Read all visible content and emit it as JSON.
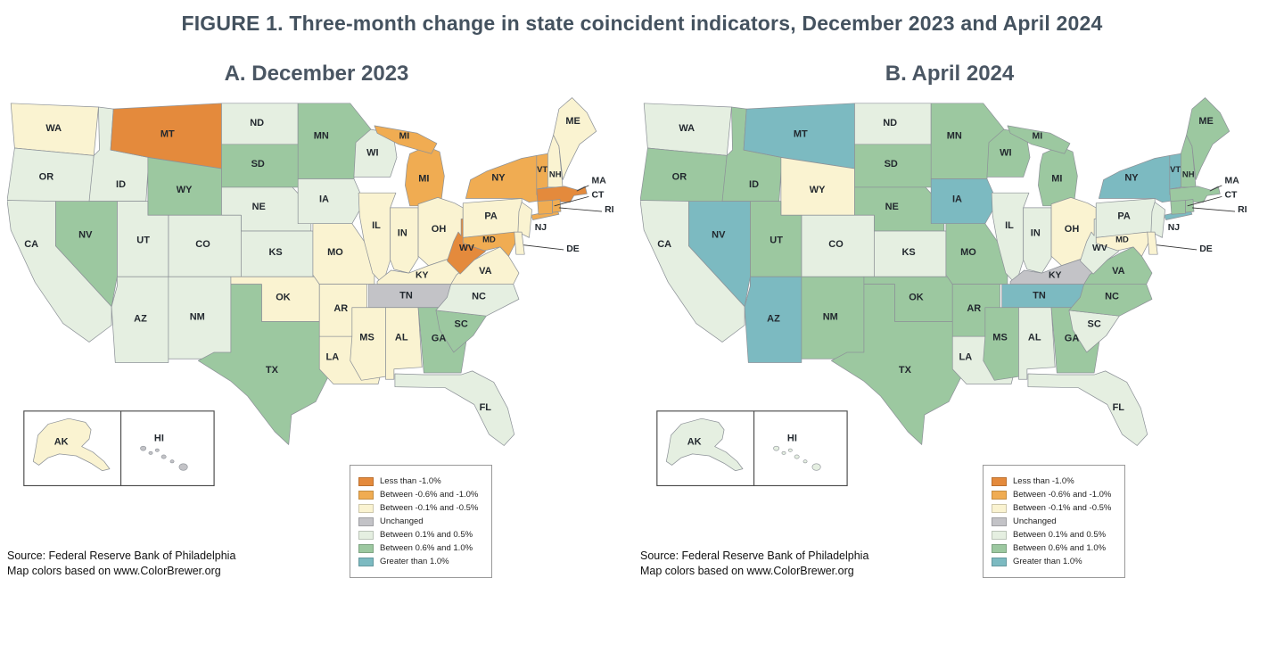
{
  "figure": {
    "title": "FIGURE 1. Three-month change in state coincident indicators, December 2023 and April 2024"
  },
  "legend": {
    "items": [
      {
        "key": "lt_m10",
        "label": "Less than -1.0%",
        "color": "#E48A3C"
      },
      {
        "key": "m06_m10",
        "label": "Between -0.6% and -1.0%",
        "color": "#F0AC52"
      },
      {
        "key": "m01_m05",
        "label": "Between -0.1% and -0.5%",
        "color": "#FAF3D1"
      },
      {
        "key": "unchanged",
        "label": "Unchanged",
        "color": "#C3C3C7"
      },
      {
        "key": "p01_p05",
        "label": "Between 0.1% and 0.5%",
        "color": "#E5EFE1"
      },
      {
        "key": "p06_p10",
        "label": "Between 0.6% and 1.0%",
        "color": "#9CC8A0"
      },
      {
        "key": "gt_p10",
        "label": "Greater than 1.0%",
        "color": "#7CBAC1"
      }
    ]
  },
  "source": {
    "line1": "Source: Federal Reserve Bank of Philadelphia",
    "line2": "Map colors based on www.ColorBrewer.org"
  },
  "map_border_color": "#8D9298",
  "panels": [
    {
      "id": "A",
      "title": "A. December 2023",
      "states": {
        "WA": "m01_m05",
        "OR": "p01_p05",
        "CA": "p01_p05",
        "ID": "p01_p05",
        "NV": "p06_p10",
        "UT": "p01_p05",
        "AZ": "p01_p05",
        "MT": "lt_m10",
        "WY": "p06_p10",
        "CO": "p01_p05",
        "NM": "p01_p05",
        "ND": "p01_p05",
        "SD": "p06_p10",
        "NE": "p01_p05",
        "KS": "p01_p05",
        "OK": "m01_m05",
        "TX": "p06_p10",
        "MN": "p06_p10",
        "IA": "p01_p05",
        "MO": "m01_m05",
        "AR": "m01_m05",
        "LA": "m01_m05",
        "WI": "p01_p05",
        "IL": "m01_m05",
        "MI": "m06_m10",
        "IN": "m01_m05",
        "OH": "m01_m05",
        "KY": "m01_m05",
        "TN": "unchanged",
        "MS": "m01_m05",
        "AL": "m01_m05",
        "GA": "p06_p10",
        "FL": "p01_p05",
        "SC": "p06_p10",
        "NC": "p01_p05",
        "VA": "m01_m05",
        "WV": "lt_m10",
        "PA": "m01_m05",
        "NY": "m06_m10",
        "NJ": "m01_m05",
        "DE": "m01_m05",
        "MD": "m06_m10",
        "VT": "m06_m10",
        "NH": "m01_m05",
        "ME": "m01_m05",
        "MA": "lt_m10",
        "CT": "m06_m10",
        "RI": "m06_m10",
        "AK": "m01_m05",
        "HI": "unchanged"
      }
    },
    {
      "id": "B",
      "title": "B. April 2024",
      "states": {
        "WA": "p01_p05",
        "OR": "p06_p10",
        "CA": "p01_p05",
        "ID": "p06_p10",
        "NV": "gt_p10",
        "UT": "p06_p10",
        "AZ": "gt_p10",
        "MT": "gt_p10",
        "WY": "m01_m05",
        "CO": "p01_p05",
        "NM": "p06_p10",
        "ND": "p01_p05",
        "SD": "p06_p10",
        "NE": "p06_p10",
        "KS": "p01_p05",
        "OK": "p06_p10",
        "TX": "p06_p10",
        "MN": "p06_p10",
        "IA": "gt_p10",
        "MO": "p06_p10",
        "AR": "p06_p10",
        "LA": "p01_p05",
        "WI": "p06_p10",
        "IL": "p01_p05",
        "MI": "p06_p10",
        "IN": "p01_p05",
        "OH": "m01_m05",
        "KY": "unchanged",
        "TN": "gt_p10",
        "MS": "p06_p10",
        "AL": "p01_p05",
        "GA": "p06_p10",
        "FL": "p01_p05",
        "SC": "p01_p05",
        "NC": "p06_p10",
        "VA": "p06_p10",
        "WV": "p01_p05",
        "PA": "p01_p05",
        "NY": "gt_p10",
        "NJ": "p01_p05",
        "DE": "m01_m05",
        "MD": "m01_m05",
        "VT": "gt_p10",
        "NH": "p06_p10",
        "ME": "p06_p10",
        "MA": "p06_p10",
        "CT": "p06_p10",
        "RI": "p06_p10",
        "AK": "p01_p05",
        "HI": "p01_p05"
      }
    }
  ]
}
